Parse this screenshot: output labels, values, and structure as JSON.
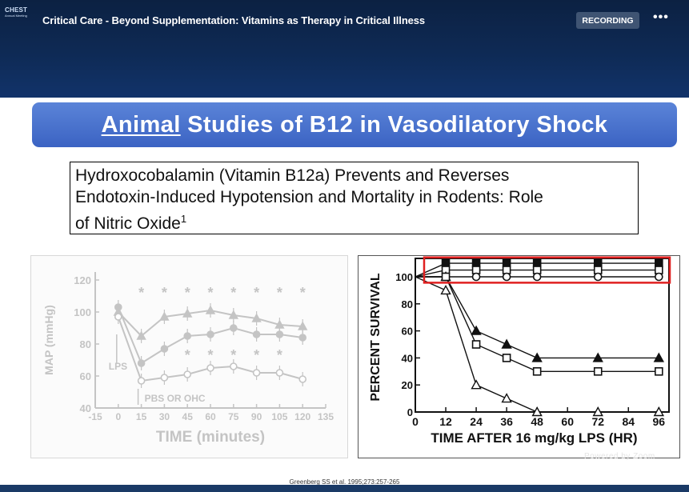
{
  "header": {
    "logo_line1": "CHEST",
    "logo_line2": "Annual Meeting",
    "title": "Critical Care - Beyond Supplementation: Vitamins as Therapy in Critical Illness",
    "recording_label": "RECORDING",
    "more_label": "•••"
  },
  "slide": {
    "banner_underlined": "Animal",
    "banner_rest": "Studies of B12 in Vasodilatory Shock",
    "reference_line1": "Hydroxocobalamin (Vitamin B12a) Prevents and Reverses",
    "reference_line2": "Endotoxin-Induced Hypotension and Mortality in Rodents: Role",
    "reference_line3": "of Nitric Oxide",
    "reference_sup": "1",
    "citation": "Greenberg SS et al. 1995;273:257-265",
    "powered_by": "Powered by Zoom"
  },
  "chart_data": [
    {
      "type": "line",
      "title": "",
      "xlabel": "TIME (minutes)",
      "ylabel": "MAP (mmHg)",
      "x_ticks": [
        "-15",
        "0",
        "15",
        "30",
        "45",
        "60",
        "75",
        "90",
        "105",
        "120",
        "135"
      ],
      "y_ticks": [
        "40",
        "60",
        "80",
        "100",
        "120"
      ],
      "xlim": [
        -15,
        135
      ],
      "ylim": [
        40,
        125
      ],
      "annotations": [
        "LPS",
        "PBS OR OHC"
      ],
      "x": [
        0,
        15,
        30,
        45,
        60,
        75,
        90,
        105,
        120
      ],
      "series": [
        {
          "name": "triangle",
          "marker": "triangle-filled",
          "values": [
            100,
            85,
            97,
            99,
            101,
            98,
            96,
            92,
            91
          ]
        },
        {
          "name": "filled circle",
          "marker": "circle-filled",
          "values": [
            103,
            68,
            77,
            85,
            86,
            90,
            86,
            86,
            84
          ]
        },
        {
          "name": "open circle",
          "marker": "circle-open",
          "values": [
            97,
            57,
            59,
            61,
            65,
            66,
            62,
            62,
            58
          ]
        }
      ],
      "significance_markers": {
        "top_row_x": [
          15,
          30,
          45,
          60,
          75,
          90,
          105,
          120
        ],
        "lower_row_x": [
          45,
          60,
          75,
          90,
          105
        ],
        "symbol": "*"
      }
    },
    {
      "type": "line",
      "title": "",
      "xlabel": "TIME AFTER 16 mg/kg LPS (HR)",
      "ylabel": "PERCENT SURVIVAL",
      "x_ticks": [
        "0",
        "12",
        "24",
        "36",
        "48",
        "60",
        "72",
        "84",
        "96"
      ],
      "y_ticks": [
        "0",
        "20",
        "40",
        "60",
        "80",
        "100"
      ],
      "xlim": [
        0,
        100
      ],
      "ylim": [
        0,
        112
      ],
      "x": [
        0,
        12,
        24,
        36,
        48,
        72,
        96
      ],
      "series": [
        {
          "name": "filled square",
          "marker": "square-filled",
          "values": [
            100,
            110,
            110,
            110,
            110,
            110,
            110
          ]
        },
        {
          "name": "open square",
          "marker": "square-open",
          "values": [
            100,
            105,
            105,
            105,
            105,
            105,
            105
          ]
        },
        {
          "name": "open circle",
          "marker": "circle-open",
          "values": [
            100,
            100,
            100,
            100,
            100,
            100,
            100
          ]
        },
        {
          "name": "filled triangle",
          "marker": "triangle-filled",
          "values": [
            100,
            100,
            60,
            50,
            40,
            40,
            40
          ]
        },
        {
          "name": "open square (declining)",
          "marker": "square-open",
          "values": [
            100,
            100,
            50,
            40,
            30,
            30,
            30
          ]
        },
        {
          "name": "open triangle",
          "marker": "triangle-open",
          "values": [
            100,
            90,
            20,
            10,
            0,
            0,
            0
          ]
        }
      ],
      "highlight": {
        "color": "#e02020",
        "y_range": [
          98,
          112
        ]
      }
    }
  ]
}
